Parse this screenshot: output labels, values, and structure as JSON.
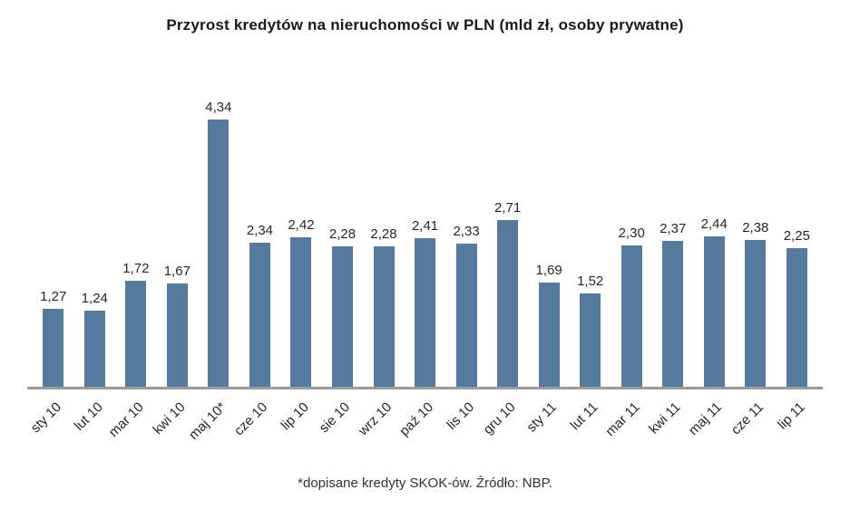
{
  "chart_data": {
    "type": "bar",
    "title": "Przyrost kredytów na nieruchomości w PLN (mld zł, osoby prywatne)",
    "categories": [
      "sty 10",
      "lut 10",
      "mar 10",
      "kwi 10",
      "maj 10*",
      "cze 10",
      "lip 10",
      "sie 10",
      "wrz 10",
      "paź 10",
      "lis 10",
      "gru 10",
      "sty 11",
      "lut 11",
      "mar 11",
      "kwi 11",
      "maj 11",
      "cze 11",
      "lip 11"
    ],
    "values": [
      1.27,
      1.24,
      1.72,
      1.67,
      4.34,
      2.34,
      2.42,
      2.28,
      2.28,
      2.41,
      2.33,
      2.71,
      1.69,
      1.52,
      2.3,
      2.37,
      2.44,
      2.38,
      2.25
    ],
    "value_labels": [
      "1,27",
      "1,24",
      "1,72",
      "1,67",
      "4,34",
      "2,34",
      "2,42",
      "2,28",
      "2,28",
      "2,41",
      "2,33",
      "2,71",
      "1,69",
      "1,52",
      "2,30",
      "2,37",
      "2,44",
      "2,38",
      "2,25"
    ],
    "xlabel": "",
    "ylabel": "",
    "ylim": [
      0,
      4.8
    ],
    "grid": false,
    "legend": "none",
    "bar_color": "#567a9e",
    "axis_line_color": "#9a9a9a",
    "footnote": "*dopisane kredyty SKOK-ów. Źródło: NBP."
  }
}
